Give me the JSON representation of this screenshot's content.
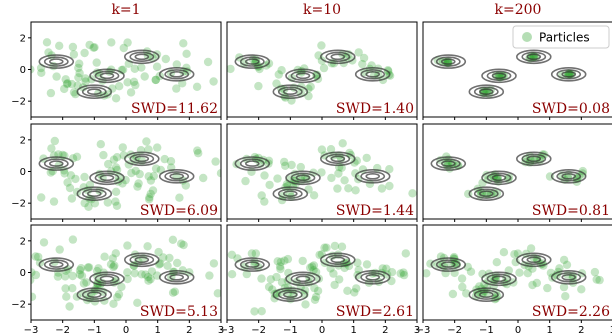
{
  "colors": {
    "particles": "#2ca02c",
    "contours": "#333333",
    "title": "#8b0000",
    "frame": "#000000"
  },
  "legend": {
    "label": "Particles",
    "placement": "upper-right of top-right panel"
  },
  "chart_data": {
    "type": "scatter",
    "description_free": true,
    "columns": [
      {
        "title": "k=1"
      },
      {
        "title": "k=10"
      },
      {
        "title": "k=200"
      }
    ],
    "xlim": [
      -3,
      3
    ],
    "ylim": [
      -3,
      3
    ],
    "xticks": [
      -3,
      -2,
      -1,
      0,
      1,
      2,
      3
    ],
    "xtick_labels": [
      "−3",
      "−2",
      "−1",
      "0",
      "1",
      "2",
      "3"
    ],
    "yticks": [
      2,
      0,
      -2
    ],
    "ytick_labels": [
      "2",
      "0",
      "−2"
    ],
    "contour_centers": [
      {
        "x": -2.2,
        "y": 0.5
      },
      {
        "x": -0.6,
        "y": -0.4
      },
      {
        "x": -1.0,
        "y": -1.4
      },
      {
        "x": 0.5,
        "y": 0.8
      },
      {
        "x": 1.6,
        "y": -0.3
      }
    ],
    "panels": [
      {
        "row": 0,
        "col": 0,
        "swd": "SWD=11.62"
      },
      {
        "row": 0,
        "col": 1,
        "swd": "SWD=1.40"
      },
      {
        "row": 0,
        "col": 2,
        "swd": "SWD=0.08"
      },
      {
        "row": 1,
        "col": 0,
        "swd": "SWD=6.09"
      },
      {
        "row": 1,
        "col": 1,
        "swd": "SWD=1.44"
      },
      {
        "row": 1,
        "col": 2,
        "swd": "SWD=0.81"
      },
      {
        "row": 2,
        "col": 0,
        "swd": "SWD=5.13"
      },
      {
        "row": 2,
        "col": 1,
        "swd": "SWD=2.61"
      },
      {
        "row": 2,
        "col": 2,
        "swd": "SWD=2.26"
      }
    ]
  }
}
